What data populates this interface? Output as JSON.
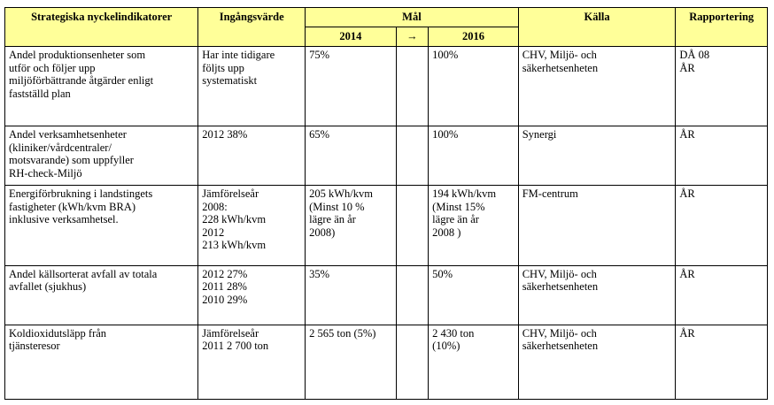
{
  "headers": {
    "indicator": "Strategiska nyckelindikatorer",
    "start_value": "Ingångsvärde",
    "goal": "Mål",
    "source": "Källa",
    "reporting": "Rapportering",
    "year_from": "2014",
    "arrow": "→",
    "year_to": "2016"
  },
  "rows": [
    {
      "indicator": [
        "Andel produktionsenheter som",
        "utför och följer upp",
        "miljöförbättrande åtgärder enligt",
        "fastställd plan"
      ],
      "start_value": [
        "Har inte tidigare",
        "följts upp",
        "systematiskt"
      ],
      "goal_2014": [
        "75%"
      ],
      "goal_2016": [
        "100%"
      ],
      "source": [
        "CHV, Miljö- och",
        "säkerhetsenheten"
      ],
      "reporting": [
        "DÅ 08",
        "ÅR"
      ]
    },
    {
      "indicator": [
        "Andel verksamhetsenheter",
        "(kliniker/vårdcentraler/",
        "motsvarande) som uppfyller",
        "RH-check-Miljö"
      ],
      "start_value": [
        "2012  38%"
      ],
      "goal_2014": [
        "65%"
      ],
      "goal_2016": [
        " 100%"
      ],
      "source": [
        "Synergi"
      ],
      "reporting": [
        "ÅR"
      ]
    },
    {
      "indicator": [
        "Energiförbrukning  i landstingets",
        "fastigheter (kWh/kvm BRA)",
        "inklusive verksamhetsel."
      ],
      "start_value": [
        "Jämförelseår",
        "2008:",
        "228 kWh/kvm",
        "2012",
        "213 kWh/kvm"
      ],
      "goal_2014": [
        "205 kWh/kvm",
        "(Minst 10 %",
        "lägre än år",
        "2008)"
      ],
      "goal_2016": [
        "194 kWh/kvm",
        "(Minst 15%",
        "lägre  än år",
        "2008 )"
      ],
      "source": [
        "FM-centrum"
      ],
      "reporting": [
        "ÅR"
      ]
    },
    {
      "indicator": [
        "Andel källsorterat avfall av totala",
        "avfallet (sjukhus)"
      ],
      "start_value": [
        "2012   27%",
        "2011   28%",
        "2010   29%"
      ],
      "goal_2014": [
        "35%"
      ],
      "goal_2016": [
        "50%"
      ],
      "source": [
        "CHV, Miljö- och",
        "säkerhetsenheten"
      ],
      "reporting": [
        "ÅR"
      ]
    },
    {
      "indicator": [
        "Koldioxidutsläpp från",
        "tjänsteresor"
      ],
      "start_value": [
        "Jämförelseår",
        "2011   2 700 ton"
      ],
      "goal_2014": [
        "2 565 ton (5%)"
      ],
      "goal_2016": [
        "2 430 ton",
        "(10%)"
      ],
      "source": [
        "CHV, Miljö- och",
        "säkerhetsenheten"
      ],
      "reporting": [
        "ÅR"
      ]
    }
  ]
}
